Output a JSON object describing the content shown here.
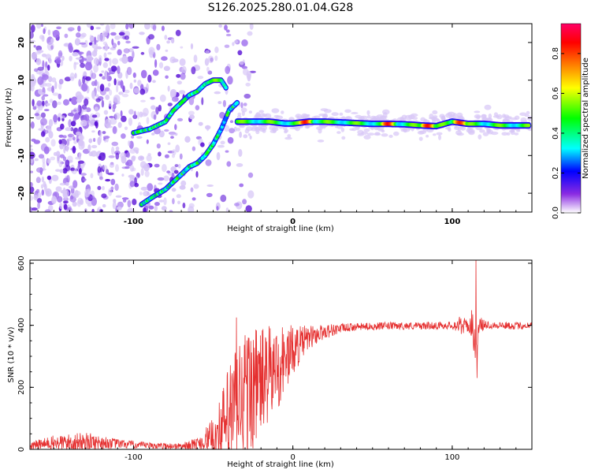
{
  "title": "S126.2025.280.01.04.G28",
  "colors": {
    "snr_line": "#e53030",
    "axis": "#000000",
    "spectrogram_faint": "#d7c6f7",
    "spectrogram_mid": "#a071ee",
    "spectrogram_strong": "#5a12d6"
  },
  "chart_data": [
    {
      "type": "heatmap",
      "title": "",
      "xlabel": "Height of straight line (km)",
      "ylabel": "Frequency (Hz)",
      "xlim": [
        -165,
        150
      ],
      "ylim": [
        -25,
        25
      ],
      "xticks": [
        -100,
        0,
        100
      ],
      "yticks": [
        -20,
        -10,
        0,
        10,
        20
      ],
      "colorbar": {
        "label": "Normalized spectral amplitude",
        "ticks": [
          0.0,
          0.2,
          0.4,
          0.6,
          0.8
        ],
        "range": [
          0,
          0.95
        ],
        "colormap": [
          "#ffffff",
          "#8a2be2",
          "#0000ff",
          "#00ffff",
          "#00ff00",
          "#ffff00",
          "#ff8000",
          "#ff0000",
          "#ff0066"
        ]
      },
      "tracks": [
        {
          "name": "ascending branch",
          "x": [
            -100,
            -90,
            -80,
            -75,
            -70,
            -65,
            -60,
            -55,
            -50,
            -45,
            -42
          ],
          "y": [
            -4,
            -3,
            -1,
            2,
            4,
            6,
            7,
            9,
            10,
            10,
            8
          ]
        },
        {
          "name": "lower descending branch",
          "x": [
            -95,
            -88,
            -80,
            -75,
            -70,
            -65,
            -60,
            -55,
            -50,
            -45,
            -40,
            -35
          ],
          "y": [
            -23,
            -21,
            -19,
            -17,
            -15,
            -13,
            -12,
            -10,
            -7,
            -3,
            2,
            4
          ]
        },
        {
          "name": "main flat track",
          "x": [
            -35,
            -25,
            -15,
            -5,
            0,
            10,
            20,
            30,
            40,
            50,
            60,
            70,
            80,
            90,
            100,
            110,
            120,
            130,
            140,
            148
          ],
          "y": [
            -1,
            -1,
            -1,
            -1.5,
            -1.5,
            -1,
            -1,
            -1.2,
            -1.4,
            -1.6,
            -1.6,
            -1.7,
            -2,
            -2.2,
            -1,
            -1.6,
            -1.6,
            -2,
            -2,
            -2
          ]
        }
      ],
      "track_peak_amplitudes": [
        {
          "x": -48,
          "y": 10,
          "amplitude": 0.55
        },
        {
          "x": -68,
          "y": 4,
          "amplitude": 0.5
        },
        {
          "x": 8,
          "y": -1,
          "amplitude": 0.85
        },
        {
          "x": 60,
          "y": -1.6,
          "amplitude": 0.85
        },
        {
          "x": 85,
          "y": -2.2,
          "amplitude": 0.85
        },
        {
          "x": 105,
          "y": -1.6,
          "amplitude": 0.85
        }
      ]
    },
    {
      "type": "line",
      "title": "",
      "xlabel": "Height of straight line (km)",
      "ylabel": "SNR (10 * v/v)",
      "xlim": [
        -165,
        150
      ],
      "ylim": [
        0,
        610
      ],
      "xticks": [
        -100,
        0,
        100
      ],
      "yticks": [
        0,
        200,
        400,
        600
      ],
      "series": [
        {
          "name": "SNR",
          "envelope_x": [
            -165,
            -150,
            -130,
            -110,
            -90,
            -70,
            -60,
            -50,
            -45,
            -40,
            -35,
            -30,
            -25,
            -20,
            -15,
            -10,
            -5,
            0,
            5,
            10,
            15,
            20,
            25,
            30,
            40,
            60,
            80,
            100,
            105,
            110,
            113,
            115,
            117,
            120,
            130,
            140,
            150
          ],
          "envelope_y": [
            12,
            20,
            25,
            18,
            12,
            10,
            18,
            40,
            60,
            100,
            140,
            180,
            200,
            220,
            240,
            260,
            290,
            320,
            340,
            360,
            370,
            380,
            385,
            390,
            395,
            398,
            398,
            400,
            400,
            398,
            400,
            300,
            400,
            402,
            400,
            398,
            400
          ],
          "noise_envelope_x": [
            -165,
            -150,
            -130,
            -110,
            -90,
            -70,
            -60,
            -50,
            -45,
            -40,
            -35,
            -30,
            -25,
            -20,
            -15,
            -10,
            -5,
            0,
            5,
            10,
            15,
            20,
            25,
            30,
            40,
            60,
            80,
            100,
            105,
            110,
            113,
            115,
            117,
            120,
            130,
            140,
            150
          ],
          "noise_envelope_y": [
            12,
            25,
            30,
            15,
            10,
            10,
            20,
            60,
            120,
            180,
            220,
            220,
            200,
            180,
            160,
            140,
            120,
            80,
            60,
            40,
            30,
            25,
            20,
            15,
            12,
            12,
            12,
            12,
            30,
            20,
            60,
            40,
            30,
            15,
            12,
            12,
            12
          ],
          "spikes": [
            {
              "x": -35.5,
              "y": 425
            },
            {
              "x": 115,
              "y": 610
            },
            {
              "x": 115.5,
              "y": 230
            }
          ]
        }
      ]
    }
  ]
}
